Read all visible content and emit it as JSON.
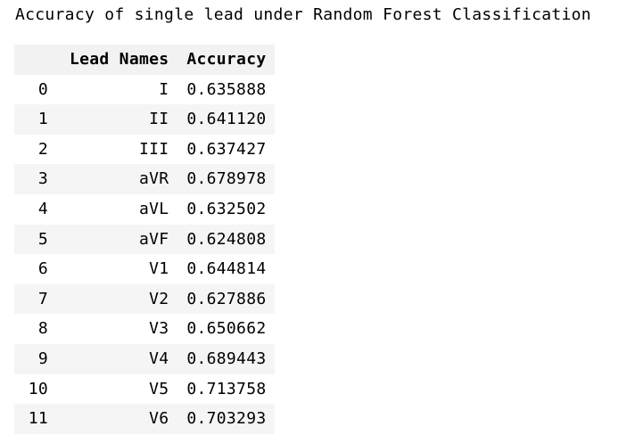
{
  "caption": "Accuracy of single lead under Random Forest Classification",
  "table": {
    "index_header": "",
    "columns": [
      "Lead Names",
      "Accuracy"
    ],
    "rows": [
      {
        "index": "0",
        "lead": "I",
        "accuracy": "0.635888"
      },
      {
        "index": "1",
        "lead": "II",
        "accuracy": "0.641120"
      },
      {
        "index": "2",
        "lead": "III",
        "accuracy": "0.637427"
      },
      {
        "index": "3",
        "lead": "aVR",
        "accuracy": "0.678978"
      },
      {
        "index": "4",
        "lead": "aVL",
        "accuracy": "0.632502"
      },
      {
        "index": "5",
        "lead": "aVF",
        "accuracy": "0.624808"
      },
      {
        "index": "6",
        "lead": "V1",
        "accuracy": "0.644814"
      },
      {
        "index": "7",
        "lead": "V2",
        "accuracy": "0.627886"
      },
      {
        "index": "8",
        "lead": "V3",
        "accuracy": "0.650662"
      },
      {
        "index": "9",
        "lead": "V4",
        "accuracy": "0.689443"
      },
      {
        "index": "10",
        "lead": "V5",
        "accuracy": "0.713758"
      },
      {
        "index": "11",
        "lead": "V6",
        "accuracy": "0.703293"
      }
    ]
  },
  "colors": {
    "header_bg": "#f2f2f2",
    "stripe_bg": "#f5f5f5"
  }
}
